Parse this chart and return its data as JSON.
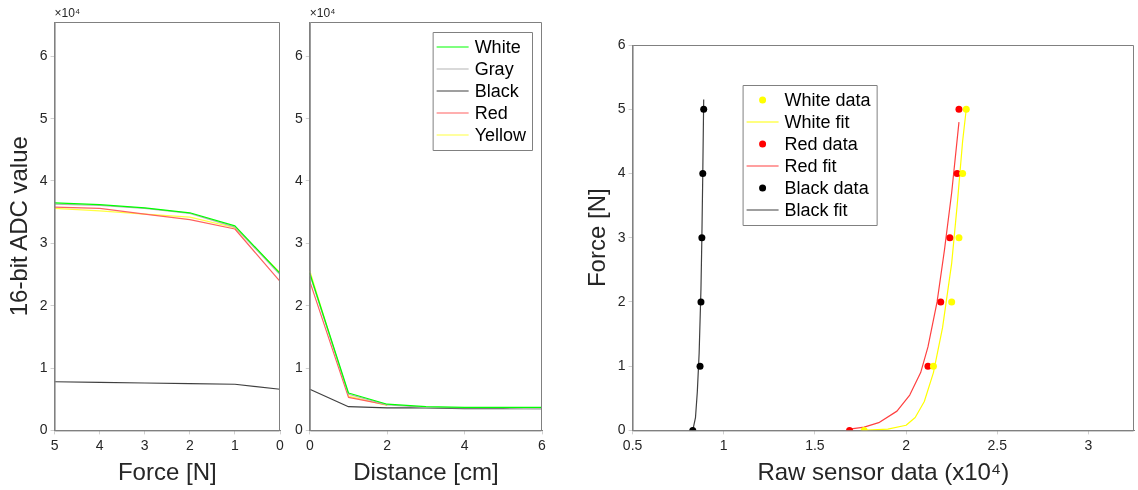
{
  "chart_data": [
    {
      "type": "line",
      "xlabel": "Force [N]",
      "ylabel": "16-bit ADC value",
      "annotations": [
        "×10⁴"
      ],
      "x": [
        5,
        4,
        3,
        2,
        1,
        0
      ],
      "xlim": [
        5,
        0
      ],
      "xticks": [
        5,
        4,
        3,
        2,
        1,
        0
      ],
      "ylim": [
        0,
        6.55
      ],
      "yticks": [
        0,
        1,
        2,
        3,
        4,
        5,
        6
      ],
      "grid": false,
      "legend": false,
      "series": [
        {
          "color": "#00ff00",
          "values": [
            3.65,
            3.62,
            3.57,
            3.49,
            3.28,
            2.52
          ]
        },
        {
          "color": "#b3b3b3",
          "values": [
            3.63,
            3.61,
            3.56,
            3.48,
            3.26,
            2.5
          ]
        },
        {
          "color": "#404040",
          "values": [
            0.78,
            0.77,
            0.76,
            0.75,
            0.74,
            0.66
          ]
        },
        {
          "color": "#ff6060",
          "values": [
            3.58,
            3.56,
            3.47,
            3.38,
            3.23,
            2.39
          ]
        },
        {
          "color": "#ffff40",
          "values": [
            3.56,
            3.52,
            3.47,
            3.42,
            3.25,
            2.53
          ]
        }
      ]
    },
    {
      "type": "line",
      "xlabel": "Distance [cm]",
      "annotations": [
        "×10⁴"
      ],
      "x": [
        0,
        1,
        2,
        3,
        4,
        5,
        6
      ],
      "xlim": [
        0,
        6
      ],
      "xticks": [
        0,
        2,
        4,
        6
      ],
      "ylim": [
        0,
        6.55
      ],
      "yticks": [
        0,
        1,
        2,
        3,
        4,
        5,
        6
      ],
      "grid": false,
      "legend": "top right",
      "series": [
        {
          "name": "White",
          "color": "#00ff00",
          "values": [
            2.52,
            0.6,
            0.42,
            0.38,
            0.37,
            0.37,
            0.37
          ]
        },
        {
          "name": "Gray",
          "color": "#b3b3b3",
          "values": [
            2.5,
            0.58,
            0.41,
            0.37,
            0.36,
            0.36,
            0.35
          ]
        },
        {
          "name": "Black",
          "color": "#404040",
          "values": [
            0.66,
            0.38,
            0.36,
            0.36,
            0.35,
            0.35,
            0.35
          ]
        },
        {
          "name": "Red",
          "color": "#ff6060",
          "values": [
            2.39,
            0.53,
            0.41,
            null,
            null,
            null,
            null
          ]
        },
        {
          "name": "Yellow",
          "color": "#ffff40",
          "values": [
            2.56,
            0.55,
            0.4,
            null,
            null,
            null,
            null
          ]
        }
      ]
    },
    {
      "type": "line",
      "xlabel": "Raw sensor data (x10⁴)",
      "ylabel": "Force [N]",
      "xlim": [
        0.5,
        3.25
      ],
      "xticks": [
        0.5,
        1,
        1.5,
        2,
        2.5,
        3
      ],
      "ylim": [
        0,
        6
      ],
      "yticks": [
        0,
        1,
        2,
        3,
        4,
        5,
        6
      ],
      "grid": false,
      "legend": "top left",
      "series": [
        {
          "name": "White data",
          "type": "scatter",
          "marker": "circle",
          "color": "#ffff00",
          "x": [
            1.77,
            2.15,
            2.25,
            2.29,
            2.31,
            2.33
          ],
          "values": [
            0,
            1,
            2,
            3,
            4,
            5
          ]
        },
        {
          "name": "White fit",
          "color": "#ffff00",
          "x": [
            1.76,
            1.9,
            2.0,
            2.05,
            2.1,
            2.15,
            2.2,
            2.25,
            2.28,
            2.31,
            2.33
          ],
          "values": [
            0,
            0.02,
            0.08,
            0.2,
            0.45,
            0.9,
            1.6,
            2.6,
            3.5,
            4.5,
            5
          ]
        },
        {
          "name": "Red data",
          "type": "scatter",
          "marker": "circle",
          "color": "#ff0000",
          "x": [
            1.69,
            2.12,
            2.19,
            2.24,
            2.28,
            2.29
          ],
          "values": [
            0,
            1,
            2,
            3,
            4,
            5
          ]
        },
        {
          "name": "Red fit",
          "color": "#ff4040",
          "x": [
            1.69,
            1.77,
            1.85,
            1.95,
            2.02,
            2.08,
            2.12,
            2.17,
            2.21,
            2.25,
            2.29
          ],
          "values": [
            0.02,
            0.05,
            0.12,
            0.3,
            0.55,
            0.9,
            1.3,
            2,
            2.8,
            3.7,
            4.8
          ]
        },
        {
          "name": "Black data",
          "type": "scatter",
          "marker": "circle",
          "color": "#000000",
          "x": [
            0.83,
            0.87,
            0.875,
            0.88,
            0.885,
            0.89
          ],
          "values": [
            0,
            1,
            2,
            3,
            4,
            5
          ]
        },
        {
          "name": "Black fit",
          "color": "#404040",
          "x": [
            0.83,
            0.845,
            0.855,
            0.865,
            0.875,
            0.88,
            0.885,
            0.89
          ],
          "values": [
            0,
            0.2,
            0.6,
            1.2,
            2.2,
            3,
            4,
            5.15
          ]
        }
      ]
    }
  ]
}
